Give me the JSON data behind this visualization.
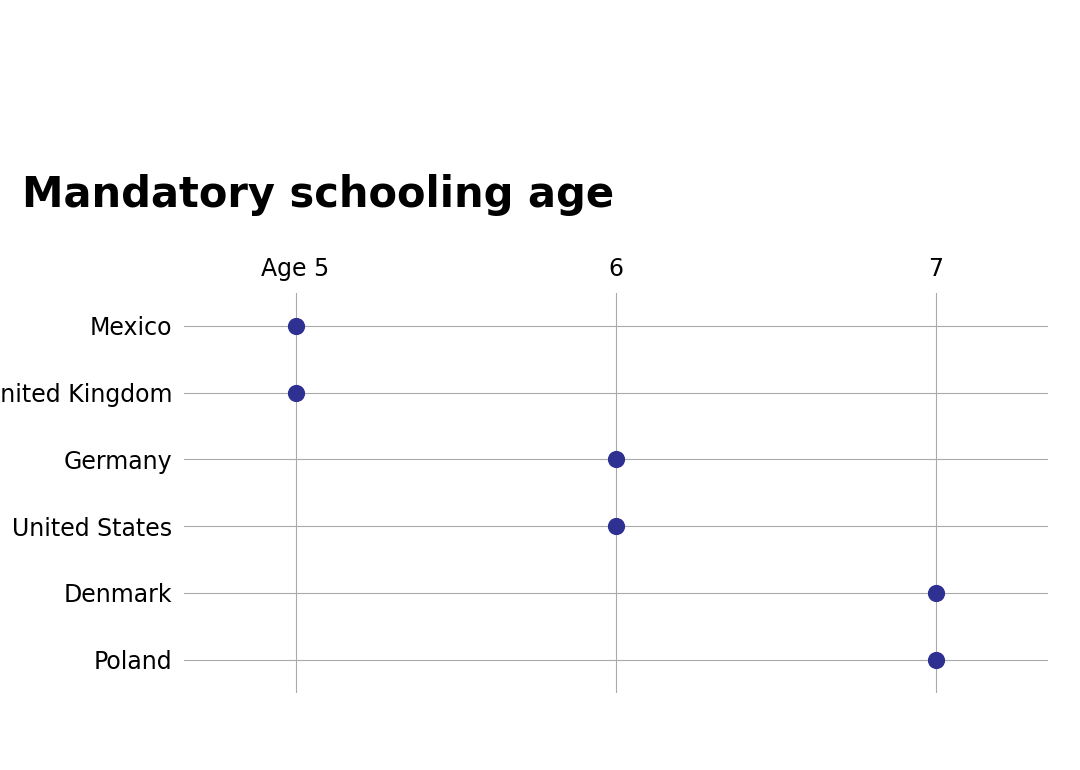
{
  "title": "Mandatory schooling age",
  "countries": [
    "Mexico",
    "United Kingdom",
    "Germany",
    "United States",
    "Denmark",
    "Poland"
  ],
  "ages": [
    5,
    5,
    6,
    6,
    7,
    7
  ],
  "dot_color": "#2E3191",
  "background_color": "#ffffff",
  "x_tick_labels": [
    "Age 5",
    "6",
    "7"
  ],
  "x_tick_values": [
    5,
    6,
    7
  ],
  "xlim": [
    4.65,
    7.35
  ],
  "title_fontsize": 30,
  "label_fontsize": 17,
  "tick_fontsize": 17,
  "dot_size": 130,
  "grid_color": "#aaaaaa",
  "grid_linewidth": 0.8
}
